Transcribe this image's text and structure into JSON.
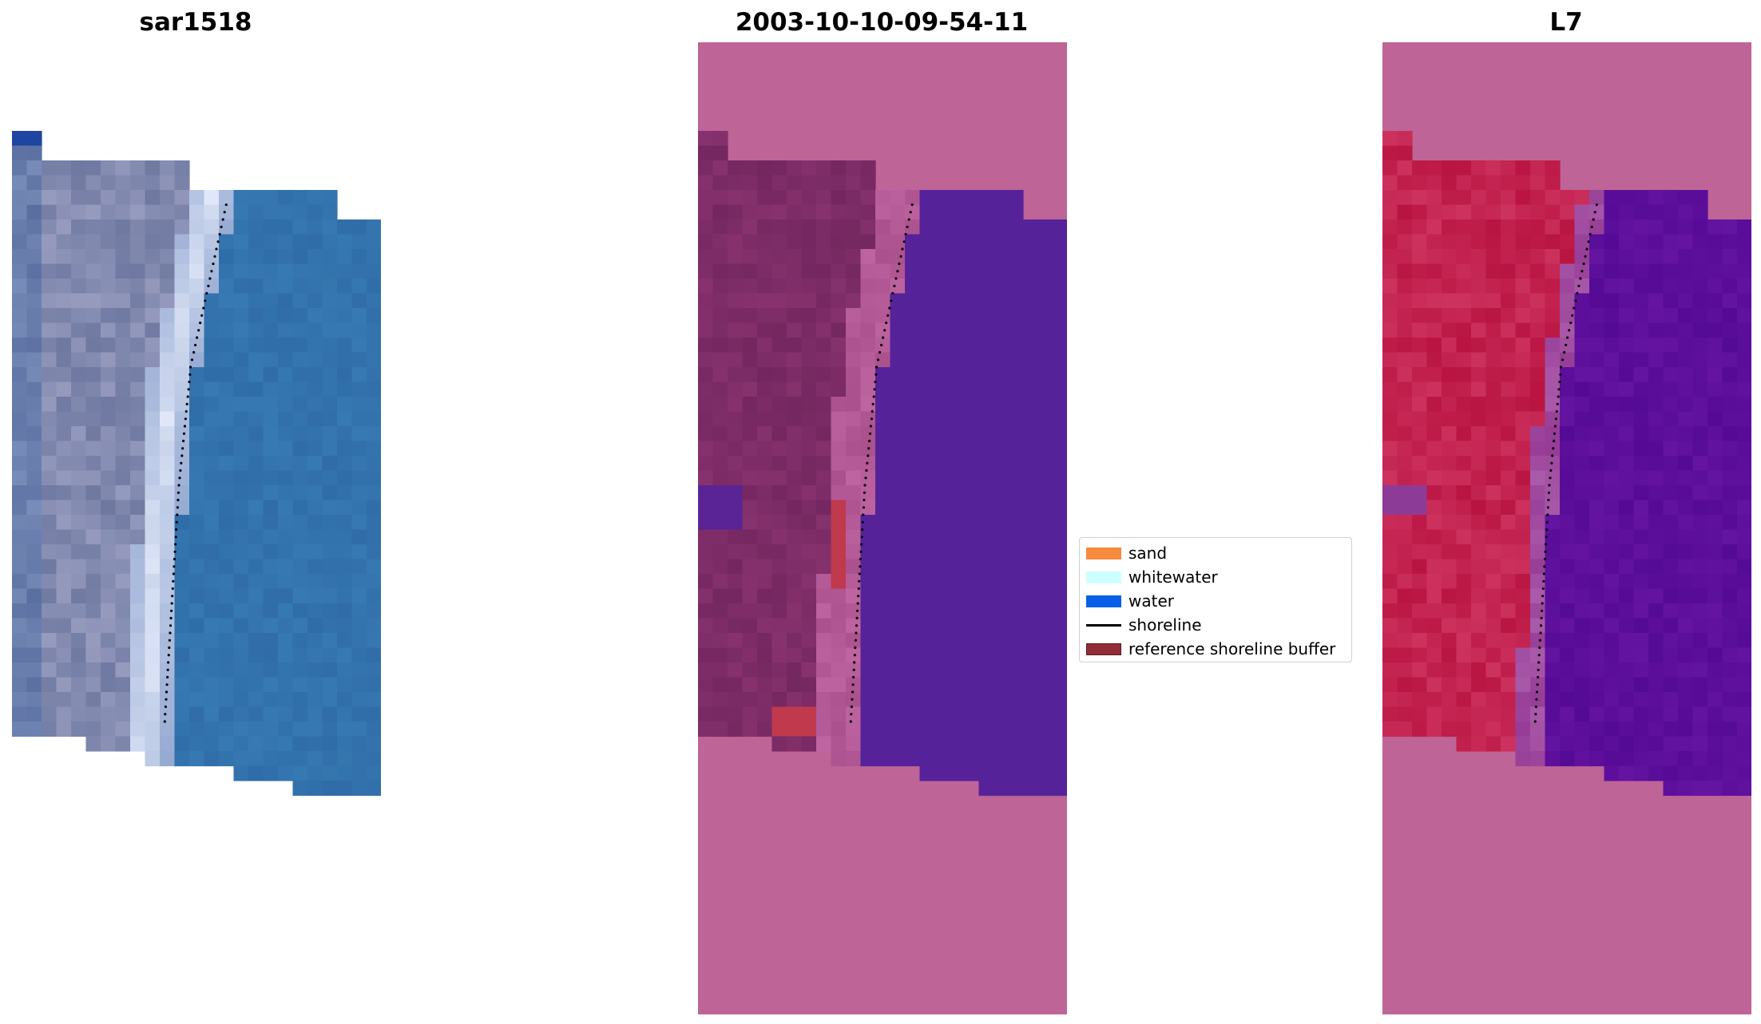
{
  "panels": [
    {
      "title": "sar1518",
      "kind": "rgb"
    },
    {
      "title": "2003-10-10-09-54-11",
      "kind": "classified"
    },
    {
      "title": "L7",
      "kind": "ndwi"
    }
  ],
  "legend": {
    "items": [
      {
        "label": "sand",
        "color": "#f58b3d",
        "type": "patch"
      },
      {
        "label": "whitewater",
        "color": "#ccffff",
        "type": "patch"
      },
      {
        "label": "water",
        "color": "#0a5fe8",
        "type": "patch"
      },
      {
        "label": "shoreline",
        "color": "#000000",
        "type": "line"
      },
      {
        "label": "reference shoreline buffer",
        "color": "#942c38",
        "type": "patch",
        "border": "#5a1a20"
      }
    ]
  },
  "colors": {
    "background_overlay": "#be6497",
    "water_class": "#55229a",
    "land_class": "#7a2a63",
    "buffer": "#c0394c",
    "rgb_water": "#2f6da8",
    "rgb_sand": "#dfe6f8",
    "ndwi_land": "#c71440",
    "ndwi_water": "#6a12a0"
  }
}
